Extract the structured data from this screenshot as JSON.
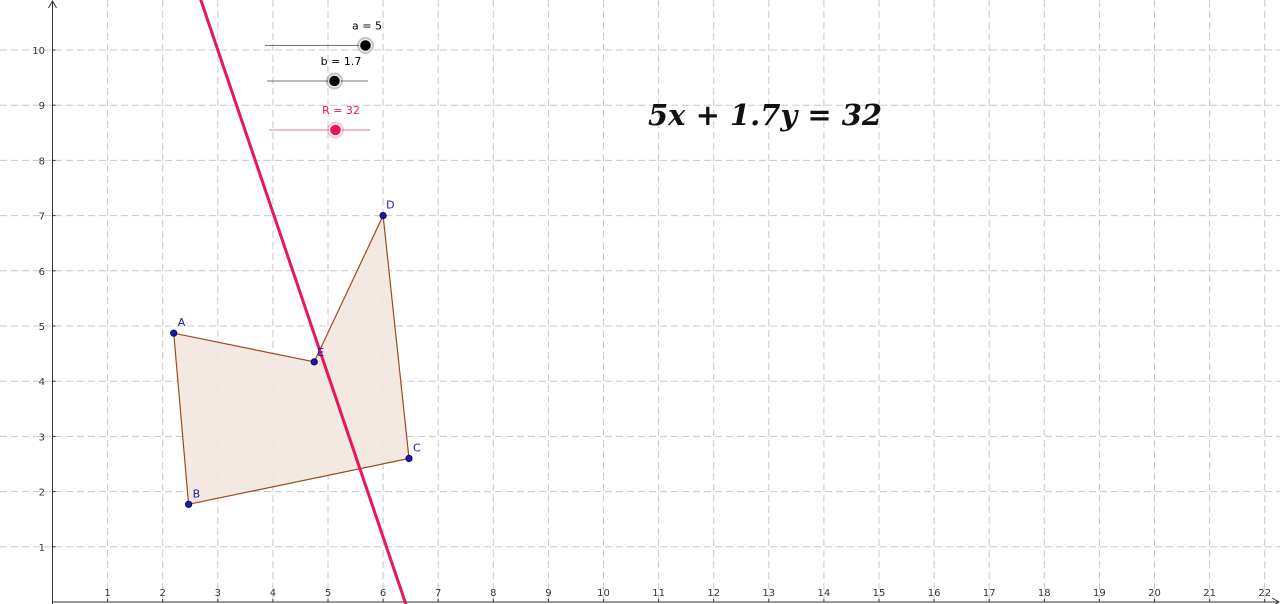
{
  "equation": "5x + 1.7y = 32",
  "sliders": [
    {
      "name": "a",
      "label": "a = 5",
      "value": 5,
      "color": "#000000",
      "line_color": "#555555"
    },
    {
      "name": "b",
      "label": "b = 1.7",
      "value": 1.7,
      "color": "#000000",
      "line_color": "#555555"
    },
    {
      "name": "R",
      "label": "R = 32",
      "value": 32,
      "color": "#e8155f",
      "line_color": "#e8155f"
    }
  ],
  "axes": {
    "x_ticks": [
      1,
      2,
      3,
      4,
      5,
      6,
      7,
      8,
      9,
      10,
      11,
      12,
      13,
      14,
      15,
      16,
      17,
      18,
      19,
      20,
      21,
      22
    ],
    "y_ticks": [
      1,
      2,
      3,
      4,
      5,
      6,
      7,
      8,
      9,
      10
    ],
    "xlim": [
      -0.95,
      22.3
    ],
    "ylim": [
      -1.0,
      10.9
    ],
    "grid": true
  },
  "points": [
    {
      "label": "A",
      "x": 2.2,
      "y": 4.87
    },
    {
      "label": "E",
      "x": 4.75,
      "y": 4.35
    },
    {
      "label": "D",
      "x": 6.0,
      "y": 7.0
    },
    {
      "label": "C",
      "x": 6.47,
      "y": 2.6
    },
    {
      "label": "B",
      "x": 2.47,
      "y": 1.77
    }
  ],
  "polygon_order": [
    "A",
    "E",
    "D",
    "C",
    "B"
  ],
  "line": {
    "a": 5,
    "b": 1.7,
    "R": 32,
    "color": "#e8155f"
  },
  "colors": {
    "polygon_fill": "#f3e6df",
    "polygon_stroke": "#9a4a22",
    "point_fill": "#1a1aa6",
    "grid": "#c8c8c8",
    "axis": "#333333"
  }
}
